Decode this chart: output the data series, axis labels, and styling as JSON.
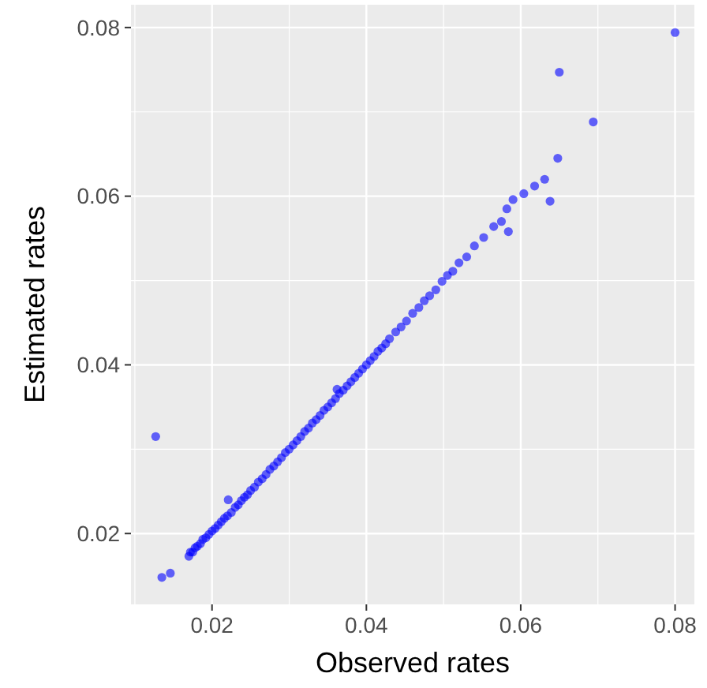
{
  "chart_data": {
    "type": "scatter",
    "xlabel": "Observed rates",
    "ylabel": "Estimated rates",
    "xlim": [
      0.0095,
      0.0825
    ],
    "ylim": [
      0.0116,
      0.0827
    ],
    "xticks": [
      0.02,
      0.04,
      0.06,
      0.08
    ],
    "yticks": [
      0.02,
      0.04,
      0.06,
      0.08
    ],
    "grid": true,
    "marker": "circle",
    "series": [
      {
        "color": "#0000ff",
        "x": [
          0.017,
          0.0172,
          0.0175,
          0.0178,
          0.0181,
          0.0185,
          0.0188,
          0.0192,
          0.0196,
          0.02,
          0.0204,
          0.0208,
          0.0212,
          0.0216,
          0.022,
          0.0225,
          0.023,
          0.0234,
          0.0238,
          0.0242,
          0.0246,
          0.025,
          0.0255,
          0.026,
          0.0265,
          0.027,
          0.0275,
          0.028,
          0.0285,
          0.029,
          0.0295,
          0.03,
          0.0305,
          0.031,
          0.0315,
          0.032,
          0.0325,
          0.033,
          0.0335,
          0.034,
          0.0345,
          0.035,
          0.0355,
          0.036,
          0.0365,
          0.037,
          0.0375,
          0.038,
          0.0385,
          0.039,
          0.0395,
          0.04,
          0.0405,
          0.041,
          0.0415,
          0.042,
          0.0425,
          0.043,
          0.0438,
          0.0445,
          0.0452,
          0.046,
          0.0468,
          0.0475,
          0.0482,
          0.049,
          0.0498,
          0.0505,
          0.0512,
          0.052,
          0.053,
          0.054,
          0.0552,
          0.0565,
          0.0575,
          0.0582,
          0.059,
          0.0584,
          0.0604,
          0.0618,
          0.0631,
          0.0638,
          0.0648,
          0.065,
          0.0694,
          0.08,
          0.0127,
          0.0135,
          0.0146,
          0.0221,
          0.0362
        ],
        "values": [
          0.0173,
          0.0178,
          0.0178,
          0.0183,
          0.0185,
          0.0188,
          0.0193,
          0.0195,
          0.0199,
          0.0203,
          0.0206,
          0.021,
          0.0214,
          0.0218,
          0.0221,
          0.0225,
          0.0231,
          0.0234,
          0.0239,
          0.0243,
          0.0246,
          0.0251,
          0.0255,
          0.0261,
          0.0265,
          0.027,
          0.0276,
          0.028,
          0.0285,
          0.029,
          0.0296,
          0.03,
          0.0305,
          0.031,
          0.0315,
          0.0321,
          0.0325,
          0.0331,
          0.0335,
          0.034,
          0.0346,
          0.035,
          0.0355,
          0.036,
          0.0366,
          0.037,
          0.0375,
          0.038,
          0.0385,
          0.039,
          0.0395,
          0.04,
          0.0405,
          0.041,
          0.0416,
          0.042,
          0.0425,
          0.0431,
          0.0439,
          0.0445,
          0.0452,
          0.0461,
          0.0468,
          0.0476,
          0.0482,
          0.0489,
          0.0499,
          0.0506,
          0.0511,
          0.0521,
          0.0528,
          0.0541,
          0.0551,
          0.0564,
          0.057,
          0.0585,
          0.0596,
          0.0558,
          0.0603,
          0.0612,
          0.062,
          0.0594,
          0.0645,
          0.0747,
          0.0688,
          0.0794,
          0.0315,
          0.0148,
          0.0153,
          0.024,
          0.0371
        ]
      }
    ]
  }
}
